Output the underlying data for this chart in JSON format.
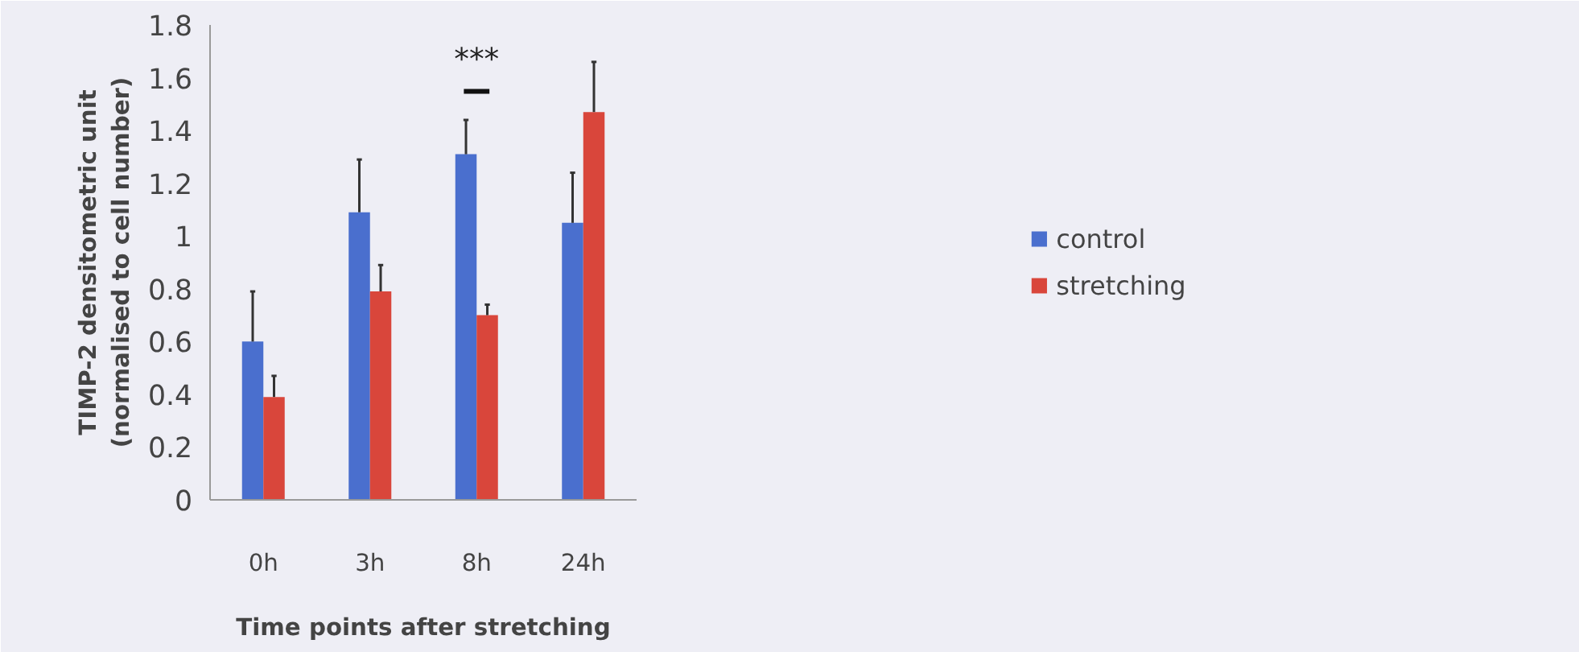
{
  "chart_data": {
    "type": "bar",
    "xlabel": "Time points after stretching",
    "ylabel": "TIMP-2 densitometric unit\n(normalised to cell number)",
    "categories": [
      "0h",
      "3h",
      "8h",
      "24h"
    ],
    "series": [
      {
        "name": "control",
        "color": "#4a6fce",
        "values": [
          0.6,
          1.09,
          1.31,
          1.05
        ],
        "errors": [
          [
            0.6,
            0.79
          ],
          [
            1.09,
            1.29
          ],
          [
            1.31,
            1.44
          ],
          [
            1.05,
            1.24
          ]
        ]
      },
      {
        "name": "stretching",
        "color": "#d9463b",
        "values": [
          0.39,
          0.79,
          0.7,
          1.47
        ],
        "errors": [
          [
            0.39,
            0.47
          ],
          [
            0.79,
            0.89
          ],
          [
            0.7,
            0.74
          ],
          [
            1.47,
            1.66
          ]
        ]
      }
    ],
    "ylim": [
      0,
      1.8
    ],
    "yticks": [
      0,
      0.2,
      0.4,
      0.6,
      0.8,
      1,
      1.2,
      1.4,
      1.6,
      1.8
    ],
    "annotations": [
      "***"
    ],
    "grid": false,
    "legend": "right"
  }
}
